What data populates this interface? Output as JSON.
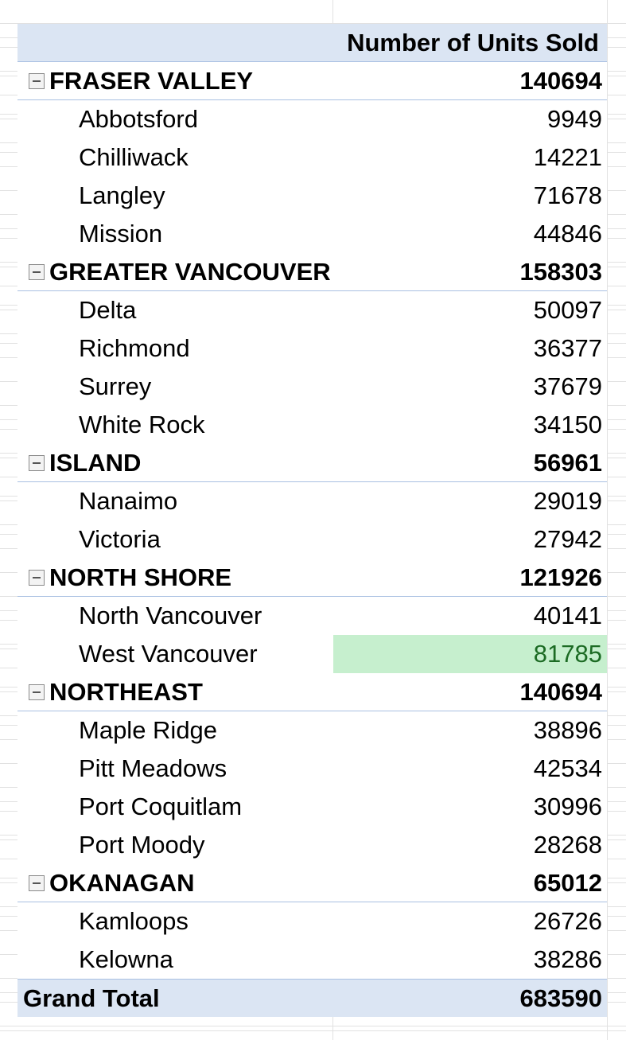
{
  "pivot": {
    "header": "Number of Units Sold",
    "regions": [
      {
        "name": "FRASER VALLEY",
        "total": "140694",
        "cities": [
          {
            "name": "Abbotsford",
            "value": "9949"
          },
          {
            "name": "Chilliwack",
            "value": "14221"
          },
          {
            "name": "Langley",
            "value": "71678"
          },
          {
            "name": "Mission",
            "value": "44846"
          }
        ]
      },
      {
        "name": "GREATER VANCOUVER",
        "total": "158303",
        "cities": [
          {
            "name": "Delta",
            "value": "50097"
          },
          {
            "name": "Richmond",
            "value": "36377"
          },
          {
            "name": "Surrey",
            "value": "37679"
          },
          {
            "name": "White Rock",
            "value": "34150"
          }
        ]
      },
      {
        "name": "ISLAND",
        "total": "56961",
        "cities": [
          {
            "name": "Nanaimo",
            "value": "29019"
          },
          {
            "name": "Victoria",
            "value": "27942"
          }
        ]
      },
      {
        "name": "NORTH SHORE",
        "total": "121926",
        "cities": [
          {
            "name": "North Vancouver",
            "value": "40141"
          },
          {
            "name": "West Vancouver",
            "value": "81785"
          }
        ]
      },
      {
        "name": "NORTHEAST",
        "total": "140694",
        "cities": [
          {
            "name": "Maple Ridge",
            "value": "38896"
          },
          {
            "name": "Pitt Meadows",
            "value": "42534"
          },
          {
            "name": "Port Coquitlam",
            "value": "30996"
          },
          {
            "name": "Port Moody",
            "value": "28268"
          }
        ]
      },
      {
        "name": "OKANAGAN",
        "total": "65012",
        "cities": [
          {
            "name": "Kamloops",
            "value": "26726"
          },
          {
            "name": "Kelowna",
            "value": "38286"
          }
        ]
      }
    ],
    "grand_total_label": "Grand Total",
    "grand_total": "683590",
    "collapse_icon": "minus-box-icon",
    "colors": {
      "header_fill": "#dbe5f3",
      "border": "#a9c0e2",
      "highlight_fill": "#c6efce",
      "highlight_text": "#1c6b24"
    }
  }
}
